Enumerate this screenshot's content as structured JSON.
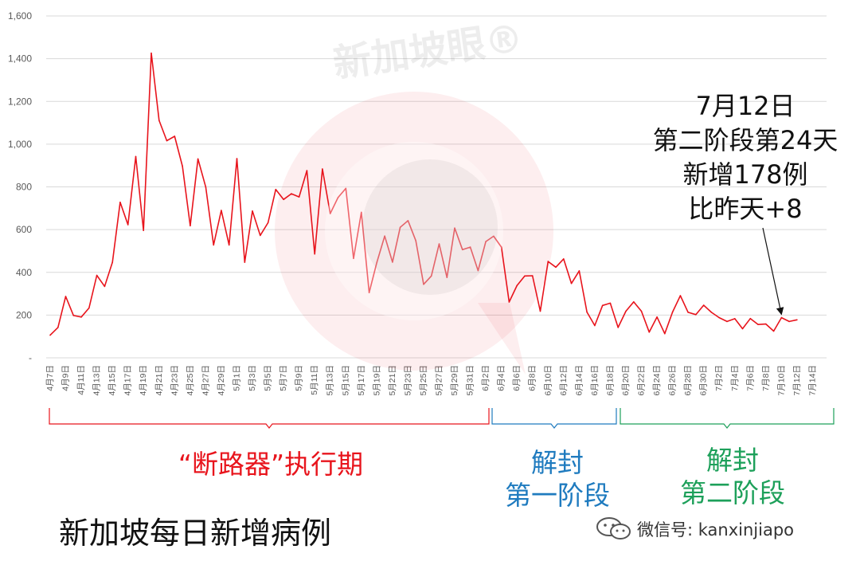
{
  "watermark": {
    "text": "新加坡眼®"
  },
  "footer": {
    "title": "新加坡每日新增病例",
    "wechat": "微信号: kanxinjiapo"
  },
  "annotation": {
    "lines": [
      "7月12日",
      "第二阶段第24天",
      "新增178例",
      "比昨天+8"
    ]
  },
  "phases": [
    {
      "label_lines": [
        "“断路器”执行期"
      ],
      "color": "#e8141c"
    },
    {
      "label_lines": [
        "解封",
        "第一阶段"
      ],
      "color": "#1f7bbf"
    },
    {
      "label_lines": [
        "解封",
        "第二阶段"
      ],
      "color": "#1da05a"
    }
  ],
  "chart_data": {
    "type": "line",
    "title": "",
    "xlabel": "",
    "ylabel": "",
    "ylim": [
      0,
      1600
    ],
    "yticks": [
      "-",
      "200",
      "400",
      "600",
      "800",
      "1,000",
      "1,200",
      "1,400",
      "1,600"
    ],
    "grid": true,
    "legend": "none",
    "line_color": "#e8141c",
    "x_tick_labels": [
      "4月7日",
      "4月9日",
      "4月11日",
      "4月13日",
      "4月15日",
      "4月17日",
      "4月19日",
      "4月21日",
      "4月23日",
      "4月25日",
      "4月27日",
      "4月29日",
      "5月1日",
      "5月3日",
      "5月5日",
      "5月7日",
      "5月9日",
      "5月11日",
      "5月13日",
      "5月15日",
      "5月17日",
      "5月19日",
      "5月21日",
      "5月23日",
      "5月25日",
      "5月27日",
      "5月29日",
      "5月31日",
      "6月2日",
      "6月4日",
      "6月6日",
      "6月8日",
      "6月10日",
      "6月12日",
      "6月14日",
      "6月16日",
      "6月18日",
      "6月20日",
      "6月22日",
      "6月24日",
      "6月26日",
      "6月28日",
      "6月30日",
      "7月2日",
      "7月4日",
      "7月6日",
      "7月8日",
      "7月10日",
      "7月12日",
      "7月14日"
    ],
    "x_start": "4月7日",
    "x_end": "7月14日",
    "values": [
      106,
      142,
      287,
      198,
      191,
      233,
      386,
      334,
      447,
      728,
      623,
      942,
      596,
      1426,
      1111,
      1016,
      1037,
      897,
      618,
      931,
      799,
      528,
      690,
      528,
      932,
      447,
      687,
      573,
      632,
      788,
      741,
      768,
      753,
      876,
      486,
      884,
      675,
      750,
      793,
      465,
      681,
      305,
      447,
      570,
      448,
      611,
      642,
      548,
      344,
      383,
      533,
      376,
      607,
      506,
      518,
      408,
      544,
      569,
      518,
      261,
      338,
      383,
      384,
      218,
      451,
      424,
      463,
      348,
      407,
      214,
      151,
      245,
      256,
      142,
      218,
      262,
      218,
      120,
      191,
      113,
      214,
      291,
      213,
      202,
      246,
      213,
      188,
      170,
      183,
      136,
      184,
      156,
      158,
      125,
      188,
      170,
      178
    ],
    "annotation": "7月12日 第二阶段第24天 新增178例 比昨天+8"
  }
}
